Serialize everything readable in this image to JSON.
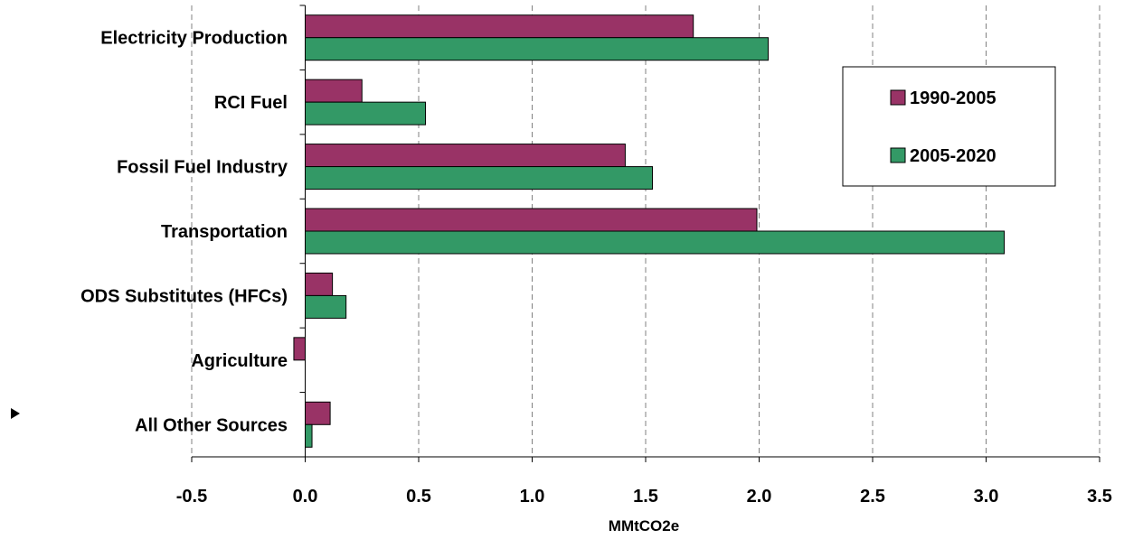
{
  "chart_data": {
    "type": "bar",
    "orientation": "horizontal",
    "categories": [
      "Electricity Production",
      "RCI Fuel",
      "Fossil Fuel Industry",
      "Transportation",
      "ODS Substitutes (HFCs)",
      "Agriculture",
      "All Other Sources"
    ],
    "series": [
      {
        "name": "1990-2005",
        "color": "#993366",
        "values": [
          1.71,
          0.25,
          1.41,
          1.99,
          0.12,
          -0.05,
          0.11
        ]
      },
      {
        "name": "2005-2020",
        "color": "#339966",
        "values": [
          2.04,
          0.53,
          1.53,
          3.08,
          0.18,
          0.0,
          0.03
        ]
      }
    ],
    "xlabel": "MMtCO2e",
    "xlim": [
      -0.5,
      3.5
    ],
    "xticks": [
      -0.5,
      0.0,
      0.5,
      1.0,
      1.5,
      2.0,
      2.5,
      3.0,
      3.5
    ],
    "xtick_labels": [
      "-0.5",
      "0.0",
      "0.5",
      "1.0",
      "1.5",
      "2.0",
      "2.5",
      "3.0",
      "3.5"
    ],
    "grid": "vertical dashed",
    "legend_position": "top-right"
  }
}
